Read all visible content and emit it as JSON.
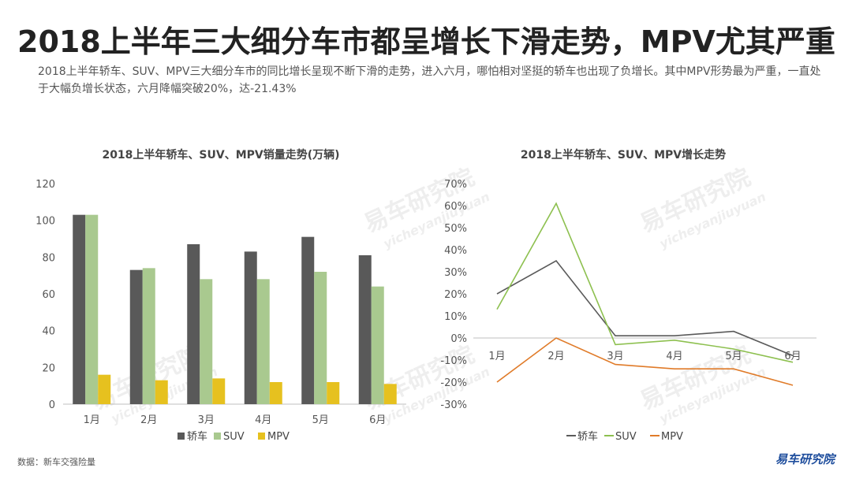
{
  "header": {
    "title": "2018上半年三大细分车市都呈增长下滑走势，MPV尤其严重",
    "subtitle": "2018上半年轿车、SUV、MPV三大细分车市的同比增长呈现不断下滑的走势，进入六月，哪怕相对坚挺的轿车也出现了负增长。其中MPV形势最为严重，一直处于大幅负增长状态，六月降幅突破20%，达-21.43%"
  },
  "footer": {
    "source": "数据：新车交强险量",
    "logo": "易车研究院"
  },
  "watermark": {
    "brand": "易车研究院",
    "site": "yicheyanjiuyuan"
  },
  "colors": {
    "sedan_bar": "#595959",
    "suv_bar": "#a9c98f",
    "mpv_bar": "#e6c11f",
    "sedan_line": "#5a5a5a",
    "suv_line": "#8dc04f",
    "mpv_line": "#e07b29"
  },
  "chart_data": [
    {
      "type": "bar",
      "title": "2018上半年轿车、SUV、MPV销量走势(万辆)",
      "categories": [
        "1月",
        "2月",
        "3月",
        "4月",
        "5月",
        "6月"
      ],
      "series": [
        {
          "name": "轿车",
          "values": [
            103,
            73,
            87,
            83,
            91,
            81
          ]
        },
        {
          "name": "SUV",
          "values": [
            103,
            74,
            68,
            68,
            72,
            64
          ]
        },
        {
          "name": "MPV",
          "values": [
            16,
            13,
            14,
            12,
            12,
            11
          ]
        }
      ],
      "ylim": [
        0,
        120
      ],
      "yticks": [
        "0",
        "20",
        "40",
        "60",
        "80",
        "100",
        "120"
      ],
      "legend": "bottom",
      "grid": false
    },
    {
      "type": "line",
      "title": "2018上半年轿车、SUV、MPV增长走势",
      "categories": [
        "1月",
        "2月",
        "3月",
        "4月",
        "5月",
        "6月"
      ],
      "series": [
        {
          "name": "轿车",
          "values": [
            20,
            35,
            1,
            1,
            3,
            -8
          ]
        },
        {
          "name": "SUV",
          "values": [
            13,
            61,
            -3,
            -1,
            -5,
            -11
          ]
        },
        {
          "name": "MPV",
          "values": [
            -20,
            0,
            -12,
            -14,
            -14,
            -21.43
          ]
        }
      ],
      "ylim": [
        -30,
        70
      ],
      "yticks": [
        "-30%",
        "-20%",
        "-10%",
        "0%",
        "10%",
        "20%",
        "30%",
        "40%",
        "50%",
        "60%",
        "70%"
      ],
      "legend": "bottom",
      "grid": false
    }
  ]
}
